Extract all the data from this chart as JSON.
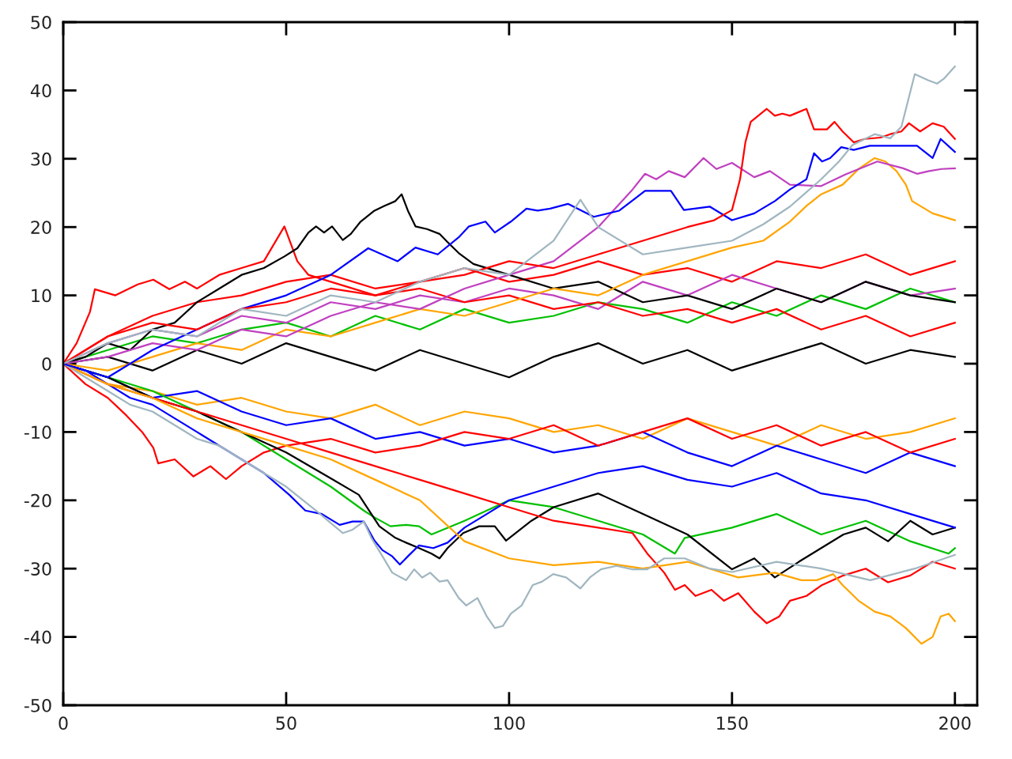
{
  "chart_data": {
    "type": "line",
    "xlim": [
      0,
      205
    ],
    "ylim": [
      -50,
      50
    ],
    "xticks": [
      0,
      50,
      100,
      150,
      200
    ],
    "yticks": [
      -50,
      -40,
      -30,
      -20,
      -10,
      0,
      10,
      20,
      30,
      40,
      50
    ],
    "series": [
      {
        "color": "#ff0000",
        "x": [
          0,
          10,
          20,
          30,
          40,
          50,
          60,
          70,
          80,
          90,
          100,
          110,
          120,
          130,
          140,
          150,
          160,
          170,
          180,
          190,
          200
        ],
        "values": [
          0,
          4,
          7,
          9,
          10,
          12,
          13,
          11,
          12,
          14,
          12,
          13,
          15,
          13,
          14,
          12,
          15,
          14,
          16,
          13,
          15
        ]
      },
      {
        "color": "#00c000",
        "x": [
          0,
          10,
          20,
          30,
          40,
          50,
          60,
          70,
          80,
          90,
          100,
          110,
          120,
          130,
          140,
          150,
          160,
          170,
          180,
          190,
          200
        ],
        "values": [
          0,
          2,
          4,
          3,
          5,
          6,
          4,
          7,
          5,
          8,
          6,
          7,
          9,
          8,
          6,
          9,
          7,
          10,
          8,
          11,
          9
        ]
      },
      {
        "color": "#ffa500",
        "x": [
          0,
          10,
          20,
          30,
          40,
          50,
          60,
          70,
          80,
          90,
          100,
          110,
          120,
          130,
          140,
          150,
          160,
          170,
          180,
          190,
          200
        ],
        "values": [
          0,
          -3,
          -4,
          -6,
          -5,
          -7,
          -8,
          -6,
          -9,
          -7,
          -8,
          -10,
          -9,
          -11,
          -8,
          -10,
          -12,
          -9,
          -11,
          -10,
          -8
        ]
      },
      {
        "color": "#000000",
        "x": [
          0,
          10,
          20,
          30,
          40,
          50,
          60,
          70,
          80,
          90,
          100,
          110,
          120,
          130,
          140,
          150,
          160,
          170,
          180,
          190,
          200
        ],
        "values": [
          0,
          1,
          -1,
          2,
          0,
          3,
          1,
          -1,
          2,
          0,
          -2,
          1,
          3,
          0,
          2,
          -1,
          1,
          3,
          0,
          2,
          1
        ]
      },
      {
        "color": "#c040c0",
        "x": [
          0,
          10,
          20,
          30,
          40,
          50,
          60,
          70,
          80,
          90,
          100,
          110,
          120,
          130,
          140,
          150,
          160,
          170,
          180,
          190,
          200
        ],
        "values": [
          0,
          3,
          5,
          4,
          7,
          6,
          9,
          8,
          10,
          9,
          11,
          10,
          8,
          12,
          10,
          13,
          11,
          9,
          12,
          10,
          11
        ]
      },
      {
        "color": "#0000ff",
        "x": [
          0,
          10,
          20,
          30,
          40,
          50,
          60,
          70,
          80,
          90,
          100,
          110,
          120,
          130,
          140,
          150,
          160,
          170,
          180,
          190,
          200
        ],
        "values": [
          0,
          -2,
          -5,
          -4,
          -7,
          -9,
          -8,
          -11,
          -10,
          -12,
          -11,
          -13,
          -12,
          -10,
          -13,
          -15,
          -12,
          -14,
          -16,
          -13,
          -15
        ]
      },
      {
        "color": "#ff0000",
        "x": [
          0,
          3,
          6,
          7.1,
          11.7,
          16.7,
          20.2,
          23.8,
          27.3,
          30,
          35,
          40,
          45,
          49.6,
          52.5,
          55,
          60,
          70,
          80,
          90,
          100,
          110,
          120,
          130,
          140,
          150,
          160,
          170,
          180,
          190,
          200
        ],
        "values": [
          0,
          3,
          7.6,
          10.9,
          10,
          11.6,
          12.3,
          10.9,
          12,
          11,
          13,
          14,
          15,
          20.1,
          15,
          13,
          12,
          10,
          11,
          9,
          10,
          8,
          9,
          7,
          8,
          6,
          8,
          5,
          7,
          4,
          6
        ]
      },
      {
        "color": "#ff0000",
        "x": [
          0,
          5,
          10,
          14.2,
          17.7,
          20.2,
          21.3,
          25,
          29.2,
          33,
          36.5,
          40,
          45,
          50,
          60,
          70,
          80,
          90,
          100,
          110,
          120,
          130,
          140,
          150,
          160,
          170,
          180,
          190,
          200
        ],
        "values": [
          0,
          -3,
          -5,
          -7.6,
          -10,
          -12.3,
          -14.6,
          -14,
          -16.5,
          -15,
          -16.9,
          -15,
          -13,
          -12,
          -11,
          -13,
          -12,
          -10,
          -11,
          -9,
          -12,
          -10,
          -8,
          -11,
          -9,
          -12,
          -10,
          -13,
          -11
        ]
      },
      {
        "color": "#00c000",
        "x": [
          0,
          10,
          20,
          30,
          40,
          50,
          60,
          67.4,
          69.8,
          73.4,
          76.9,
          79.8,
          82.6,
          90,
          100,
          110,
          120,
          130,
          137.2,
          139.4,
          150,
          160,
          170,
          180,
          190,
          198.6,
          200
        ],
        "values": [
          0,
          -2,
          -4,
          -7,
          -10,
          -14,
          -18,
          -21.5,
          -22.5,
          -23.8,
          -23.6,
          -23.8,
          -25,
          -23,
          -20,
          -21,
          -23,
          -25,
          -27.8,
          -25.5,
          -24,
          -22,
          -25,
          -23,
          -26,
          -27.8,
          -27
        ]
      },
      {
        "color": "#000000",
        "x": [
          0,
          10,
          20,
          30,
          40,
          50,
          60.3,
          66.3,
          70.9,
          74.5,
          76.9,
          79.8,
          82.6,
          84.4,
          86.2,
          89.7,
          93.3,
          96.8,
          99.3,
          105,
          110,
          120,
          130,
          140,
          150,
          155,
          159.6,
          165,
          170,
          175,
          180,
          185,
          190,
          195,
          200
        ],
        "values": [
          0,
          -2,
          -5,
          -7,
          -10,
          -13,
          -16.9,
          -19.2,
          -23.8,
          -25.5,
          -26.2,
          -27,
          -27.8,
          -28.5,
          -27,
          -24.8,
          -23.8,
          -23.8,
          -25.9,
          -23,
          -21,
          -19,
          -22,
          -25,
          -30.1,
          -28.5,
          -31.3,
          -29,
          -27,
          -25,
          -24,
          -26,
          -23,
          -25,
          -24
        ]
      },
      {
        "color": "#0000ff",
        "x": [
          0,
          5,
          10,
          15,
          20,
          25,
          30,
          35,
          40,
          45,
          50.7,
          54.3,
          58,
          62,
          64.9,
          67.4,
          69.8,
          71.6,
          73.8,
          75.5,
          77.3,
          79.8,
          83,
          86.2,
          90,
          95,
          100,
          110,
          120,
          130,
          140,
          150,
          160,
          170,
          180,
          190,
          200
        ],
        "values": [
          0,
          -1,
          -3,
          -5,
          -6,
          -8,
          -10,
          -12,
          -14,
          -16,
          -19.2,
          -21.5,
          -22,
          -23.6,
          -23.1,
          -23.1,
          -25.9,
          -27.3,
          -28.2,
          -29.4,
          -28.2,
          -26.6,
          -27,
          -26.2,
          -24,
          -22,
          -20,
          -18,
          -16,
          -15,
          -17,
          -18,
          -16,
          -19,
          -20,
          -22,
          -24
        ]
      },
      {
        "color": "#ff0000",
        "x": [
          0,
          10,
          20,
          30,
          40,
          50,
          60,
          70,
          80,
          90,
          100,
          110,
          120,
          127.7,
          131,
          134.8,
          137.2,
          139.4,
          141.8,
          145.4,
          148.2,
          151.4,
          155,
          157.8,
          160.6,
          163,
          166.7,
          170.2,
          175,
          180,
          185,
          190,
          195,
          200
        ],
        "values": [
          0,
          -3,
          -5,
          -7,
          -9,
          -11,
          -13,
          -15,
          -17,
          -19,
          -21,
          -23,
          -24,
          -24.8,
          -27.8,
          -30.6,
          -33.1,
          -32.4,
          -34,
          -33.1,
          -34.7,
          -33.6,
          -36.3,
          -38,
          -37,
          -34.7,
          -34,
          -32.4,
          -31,
          -30,
          -32,
          -31,
          -29,
          -30
        ]
      },
      {
        "color": "#ffa500",
        "x": [
          0,
          10,
          20,
          30,
          40,
          50,
          60,
          70,
          80,
          90,
          100,
          110,
          120,
          130,
          140,
          145.4,
          151.4,
          159.6,
          165.6,
          169,
          172.7,
          174.8,
          178.4,
          182,
          185.5,
          189,
          192.5,
          195,
          196.8,
          198.6,
          200
        ],
        "values": [
          0,
          -3,
          -5,
          -8,
          -10,
          -12,
          -14,
          -17,
          -20,
          -26,
          -28.5,
          -29.5,
          -29,
          -30,
          -29,
          -30.1,
          -31.3,
          -30.6,
          -31.7,
          -31.7,
          -30.8,
          -32.4,
          -34.7,
          -36.3,
          -37,
          -38.7,
          -41,
          -40,
          -37,
          -36.6,
          -37.7
        ]
      },
      {
        "color": "#a0b6c0",
        "x": [
          0,
          5,
          10,
          15,
          20,
          25,
          30,
          35,
          40,
          45,
          50,
          56.7,
          59.6,
          62.7,
          64.9,
          67.4,
          69.1,
          71.6,
          73.8,
          76.9,
          78.7,
          80.5,
          82.3,
          84.4,
          86.2,
          88.7,
          90.4,
          92.9,
          95,
          96.8,
          98.6,
          100.4,
          102.8,
          105.3,
          107.4,
          109.9,
          112.8,
          116,
          118.1,
          120.6,
          124.1,
          127.7,
          131,
          134.8,
          139.4,
          145,
          150,
          160,
          170,
          181,
          191,
          200
        ],
        "values": [
          0,
          -2,
          -4,
          -6,
          -7,
          -9,
          -11,
          -12,
          -14,
          -16,
          -18,
          -21.5,
          -23.1,
          -24.8,
          -24.3,
          -23.1,
          -25.5,
          -28.2,
          -30.6,
          -31.7,
          -30.1,
          -31.3,
          -30.6,
          -31.9,
          -31.7,
          -34.3,
          -35.4,
          -34.3,
          -37,
          -38.7,
          -38.4,
          -36.6,
          -35.4,
          -32.4,
          -31.9,
          -30.8,
          -31.3,
          -32.9,
          -31.3,
          -30.1,
          -29.6,
          -30.1,
          -30.1,
          -28.5,
          -28.5,
          -30,
          -30.5,
          -29,
          -30,
          -31.7,
          -30,
          -28
        ]
      },
      {
        "color": "#000000",
        "x": [
          0,
          5,
          10,
          15,
          20,
          25,
          30,
          35,
          40,
          45,
          49.6,
          52.5,
          55,
          56.7,
          58.5,
          60.3,
          62.7,
          64.5,
          66.7,
          69.8,
          72,
          74.5,
          75.9,
          77.3,
          79,
          81.6,
          84.4,
          86.2,
          88.7,
          92,
          100,
          110,
          120,
          130,
          140,
          150,
          160,
          170,
          180,
          190,
          200
        ],
        "values": [
          0,
          1,
          3,
          2,
          5,
          6,
          9,
          11,
          13,
          14,
          15.7,
          16.9,
          19.2,
          20.1,
          19.2,
          20.1,
          18.1,
          19,
          20.8,
          22.4,
          23.1,
          23.8,
          24.8,
          22.4,
          20.1,
          19.7,
          19,
          17.8,
          16.2,
          14.6,
          13,
          11,
          12,
          9,
          10,
          8,
          11,
          9,
          12,
          10,
          9
        ]
      },
      {
        "color": "#ffa500",
        "x": [
          0,
          10,
          20,
          30,
          40,
          50,
          60,
          70,
          80,
          90,
          100,
          110,
          120,
          130,
          140,
          150,
          157,
          163,
          166.7,
          170,
          174.8,
          178.4,
          182,
          184.4,
          186.9,
          189,
          190.4,
          195,
          200
        ],
        "values": [
          0,
          -1,
          1,
          3,
          2,
          5,
          4,
          6,
          8,
          7,
          9,
          11,
          10,
          13,
          15,
          17,
          18,
          20.8,
          23.1,
          24.8,
          26.2,
          28.5,
          30.1,
          29.6,
          28.2,
          26.2,
          23.8,
          22,
          21
        ]
      },
      {
        "color": "#c040c0",
        "x": [
          0,
          10,
          20,
          30,
          40,
          50,
          60,
          70,
          80,
          90,
          100,
          110,
          120,
          127.7,
          130.5,
          133,
          135.8,
          139.4,
          143.6,
          146.5,
          150,
          155,
          158.5,
          163,
          170,
          175.4,
          182.6,
          188.4,
          191.5,
          194.2,
          197,
          200
        ],
        "values": [
          0,
          1,
          3,
          2,
          5,
          4,
          7,
          9,
          8,
          11,
          13,
          15,
          20,
          25.5,
          27.8,
          27,
          28.2,
          27.3,
          30.1,
          28.5,
          29.4,
          27.3,
          28.2,
          26.2,
          26,
          27.7,
          29.6,
          28.6,
          27.8,
          28.2,
          28.5,
          28.6
        ]
      },
      {
        "color": "#0000ff",
        "x": [
          0,
          10,
          20,
          30,
          40,
          50,
          60,
          68.4,
          75,
          79,
          84,
          88.7,
          91,
          94.7,
          96.8,
          100.4,
          103.9,
          106.4,
          109.2,
          113.2,
          119,
          124.7,
          130.5,
          136.3,
          139.2,
          145,
          150,
          155,
          159.6,
          163,
          166.7,
          168.4,
          170.2,
          172,
          174.5,
          177.3,
          180.9,
          184.4,
          188,
          191.5,
          195,
          196.8,
          200
        ],
        "values": [
          0,
          -2,
          2,
          5,
          8,
          10,
          13,
          16.9,
          15,
          17,
          16,
          18.5,
          20.1,
          20.8,
          19.2,
          20.8,
          22.7,
          22.4,
          22.7,
          23.4,
          21.5,
          22.4,
          25.3,
          25.3,
          22.5,
          23,
          21,
          22,
          23.8,
          25.5,
          27,
          30.8,
          29.6,
          30.1,
          31.7,
          31.3,
          31.9,
          31.9,
          31.9,
          31.9,
          30.1,
          32.9,
          31
        ]
      },
      {
        "color": "#ff0000",
        "x": [
          0,
          5,
          10,
          20,
          30,
          40,
          50,
          60,
          70,
          80,
          90,
          100,
          110,
          120,
          130,
          140,
          146,
          150,
          151.8,
          153,
          154.2,
          157.8,
          159.6,
          161.3,
          163,
          166.7,
          168.4,
          171.3,
          173,
          174.8,
          177.3,
          179.8,
          183.3,
          185.5,
          188,
          189.7,
          192.2,
          195,
          197.5,
          200
        ],
        "values": [
          0,
          2,
          4,
          6,
          5,
          8,
          9,
          11,
          10,
          12,
          13,
          15,
          14,
          16,
          18,
          20,
          21,
          22.5,
          27,
          32.4,
          35.4,
          37.3,
          36.3,
          36.6,
          36.3,
          37.3,
          34.3,
          34.3,
          35.4,
          34,
          32.4,
          32.9,
          33.1,
          33.6,
          34,
          35.2,
          34,
          35.2,
          34.7,
          32.9
        ]
      },
      {
        "color": "#a0b6c0",
        "x": [
          0,
          10,
          20,
          30,
          40,
          50,
          60,
          70,
          80,
          90,
          100,
          110,
          116,
          120,
          130,
          140,
          150,
          157,
          163,
          170,
          174,
          177,
          182,
          185.5,
          188,
          191,
          194,
          196,
          197.5,
          200
        ],
        "values": [
          0,
          3,
          5,
          4,
          8,
          7,
          10,
          9,
          12,
          14,
          13,
          18,
          24,
          20,
          16,
          17,
          18,
          20.4,
          23,
          27,
          29.6,
          32,
          33.6,
          33,
          34.7,
          42.4,
          41.5,
          41,
          41.7,
          43.5
        ]
      }
    ]
  }
}
